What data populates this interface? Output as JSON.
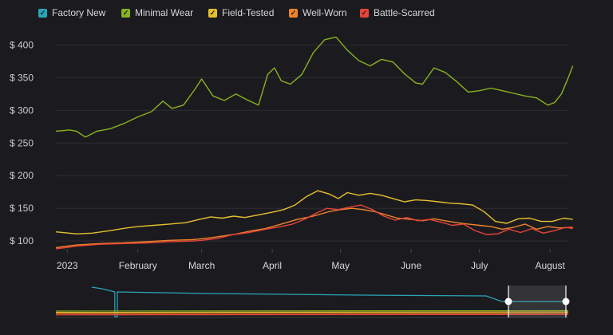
{
  "legend": [
    {
      "label": "Factory New",
      "color": "#2aa5b8"
    },
    {
      "label": "Minimal Wear",
      "color": "#88b31f"
    },
    {
      "label": "Field-Tested",
      "color": "#e6bf2f"
    },
    {
      "label": "Well-Worn",
      "color": "#f0832a"
    },
    {
      "label": "Battle-Scarred",
      "color": "#e8433a"
    }
  ],
  "chart_data": {
    "type": "line",
    "title": "",
    "xlabel": "",
    "ylabel": "",
    "y_tick_labels": [
      "$ 100",
      "$ 150",
      "$ 200",
      "$ 250",
      "$ 300",
      "$ 350",
      "$ 400"
    ],
    "y_ticks": [
      100,
      150,
      200,
      250,
      300,
      350,
      400
    ],
    "ylim": [
      88,
      420
    ],
    "x_tick_labels": [
      "2023",
      "February",
      "March",
      "April",
      "May",
      "June",
      "July",
      "August"
    ],
    "x_ticks": [
      "2023-01-01",
      "2023-02-01",
      "2023-03-01",
      "2023-04-01",
      "2023-05-01",
      "2023-06-01",
      "2023-07-01",
      "2023-08-01"
    ],
    "xlim": [
      "2022-12-27",
      "2023-08-09"
    ],
    "grid": true,
    "legend_position": "top-left",
    "navigator": {
      "type": "line",
      "selected_range": [
        "2022-12-27",
        "2023-08-09"
      ],
      "factory_new_level": "high"
    },
    "series": [
      {
        "name": "Minimal Wear",
        "color": "#88b31f",
        "points": [
          [
            "2022-12-27",
            268
          ],
          [
            "2023-01-02",
            270
          ],
          [
            "2023-01-05",
            268
          ],
          [
            "2023-01-09",
            259
          ],
          [
            "2023-01-14",
            268
          ],
          [
            "2023-01-20",
            272
          ],
          [
            "2023-01-26",
            280
          ],
          [
            "2023-02-01",
            290
          ],
          [
            "2023-02-07",
            298
          ],
          [
            "2023-02-12",
            314
          ],
          [
            "2023-02-16",
            303
          ],
          [
            "2023-02-21",
            308
          ],
          [
            "2023-02-26",
            332
          ],
          [
            "2023-03-01",
            348
          ],
          [
            "2023-03-06",
            322
          ],
          [
            "2023-03-11",
            315
          ],
          [
            "2023-03-16",
            325
          ],
          [
            "2023-03-21",
            316
          ],
          [
            "2023-03-26",
            308
          ],
          [
            "2023-03-30",
            355
          ],
          [
            "2023-04-02",
            365
          ],
          [
            "2023-04-05",
            345
          ],
          [
            "2023-04-09",
            340
          ],
          [
            "2023-04-14",
            355
          ],
          [
            "2023-04-19",
            388
          ],
          [
            "2023-04-24",
            408
          ],
          [
            "2023-04-29",
            412
          ],
          [
            "2023-05-04",
            392
          ],
          [
            "2023-05-09",
            376
          ],
          [
            "2023-05-14",
            368
          ],
          [
            "2023-05-19",
            378
          ],
          [
            "2023-05-24",
            374
          ],
          [
            "2023-05-29",
            356
          ],
          [
            "2023-06-03",
            342
          ],
          [
            "2023-06-06",
            340
          ],
          [
            "2023-06-11",
            365
          ],
          [
            "2023-06-16",
            358
          ],
          [
            "2023-06-21",
            344
          ],
          [
            "2023-06-26",
            328
          ],
          [
            "2023-07-01",
            330
          ],
          [
            "2023-07-06",
            334
          ],
          [
            "2023-07-11",
            330
          ],
          [
            "2023-07-16",
            326
          ],
          [
            "2023-07-21",
            322
          ],
          [
            "2023-07-26",
            319
          ],
          [
            "2023-07-31",
            308
          ],
          [
            "2023-08-03",
            312
          ],
          [
            "2023-08-06",
            325
          ],
          [
            "2023-08-09",
            350
          ],
          [
            "2023-08-11",
            368
          ]
        ]
      },
      {
        "name": "Field-Tested",
        "color": "#e6bf2f",
        "points": [
          [
            "2022-12-27",
            114
          ],
          [
            "2023-01-05",
            111
          ],
          [
            "2023-01-12",
            112
          ],
          [
            "2023-01-20",
            116
          ],
          [
            "2023-01-27",
            120
          ],
          [
            "2023-02-01",
            122
          ],
          [
            "2023-02-08",
            124
          ],
          [
            "2023-02-15",
            126
          ],
          [
            "2023-02-22",
            128
          ],
          [
            "2023-02-28",
            133
          ],
          [
            "2023-03-05",
            137
          ],
          [
            "2023-03-10",
            135
          ],
          [
            "2023-03-15",
            138
          ],
          [
            "2023-03-20",
            136
          ],
          [
            "2023-03-26",
            140
          ],
          [
            "2023-04-01",
            144
          ],
          [
            "2023-04-06",
            148
          ],
          [
            "2023-04-11",
            155
          ],
          [
            "2023-04-16",
            168
          ],
          [
            "2023-04-21",
            177
          ],
          [
            "2023-04-26",
            172
          ],
          [
            "2023-04-30",
            165
          ],
          [
            "2023-05-04",
            174
          ],
          [
            "2023-05-09",
            170
          ],
          [
            "2023-05-14",
            173
          ],
          [
            "2023-05-19",
            170
          ],
          [
            "2023-05-24",
            165
          ],
          [
            "2023-05-29",
            160
          ],
          [
            "2023-06-03",
            163
          ],
          [
            "2023-06-08",
            162
          ],
          [
            "2023-06-13",
            160
          ],
          [
            "2023-06-18",
            158
          ],
          [
            "2023-06-23",
            157
          ],
          [
            "2023-06-28",
            155
          ],
          [
            "2023-07-03",
            145
          ],
          [
            "2023-07-08",
            130
          ],
          [
            "2023-07-13",
            127
          ],
          [
            "2023-07-18",
            134
          ],
          [
            "2023-07-23",
            135
          ],
          [
            "2023-07-28",
            130
          ],
          [
            "2023-08-02",
            130
          ],
          [
            "2023-08-07",
            135
          ],
          [
            "2023-08-11",
            133
          ]
        ]
      },
      {
        "name": "Well-Worn",
        "color": "#f0832a",
        "points": [
          [
            "2022-12-27",
            90
          ],
          [
            "2023-01-05",
            94
          ],
          [
            "2023-01-15",
            96
          ],
          [
            "2023-01-25",
            97
          ],
          [
            "2023-02-05",
            99
          ],
          [
            "2023-02-15",
            101
          ],
          [
            "2023-02-25",
            102
          ],
          [
            "2023-03-05",
            105
          ],
          [
            "2023-03-15",
            110
          ],
          [
            "2023-03-22",
            115
          ],
          [
            "2023-03-29",
            119
          ],
          [
            "2023-04-05",
            126
          ],
          [
            "2023-04-12",
            133
          ],
          [
            "2023-04-19",
            138
          ],
          [
            "2023-04-26",
            145
          ],
          [
            "2023-05-01",
            148
          ],
          [
            "2023-05-06",
            150
          ],
          [
            "2023-05-11",
            148
          ],
          [
            "2023-05-16",
            145
          ],
          [
            "2023-05-21",
            140
          ],
          [
            "2023-05-26",
            135
          ],
          [
            "2023-06-01",
            133
          ],
          [
            "2023-06-06",
            131
          ],
          [
            "2023-06-11",
            134
          ],
          [
            "2023-06-16",
            131
          ],
          [
            "2023-06-21",
            128
          ],
          [
            "2023-06-26",
            126
          ],
          [
            "2023-07-01",
            124
          ],
          [
            "2023-07-06",
            122
          ],
          [
            "2023-07-11",
            118
          ],
          [
            "2023-07-16",
            121
          ],
          [
            "2023-07-21",
            126
          ],
          [
            "2023-07-26",
            118
          ],
          [
            "2023-07-31",
            122
          ],
          [
            "2023-08-05",
            120
          ],
          [
            "2023-08-11",
            121
          ]
        ]
      },
      {
        "name": "Battle-Scarred",
        "color": "#e8433a",
        "points": [
          [
            "2022-12-27",
            88
          ],
          [
            "2023-01-05",
            92
          ],
          [
            "2023-01-15",
            95
          ],
          [
            "2023-01-25",
            96
          ],
          [
            "2023-02-05",
            97
          ],
          [
            "2023-02-15",
            99
          ],
          [
            "2023-02-25",
            100
          ],
          [
            "2023-03-01",
            101
          ],
          [
            "2023-03-08",
            104
          ],
          [
            "2023-03-15",
            110
          ],
          [
            "2023-03-22",
            113
          ],
          [
            "2023-03-29",
            118
          ],
          [
            "2023-04-05",
            122
          ],
          [
            "2023-04-10",
            126
          ],
          [
            "2023-04-15",
            133
          ],
          [
            "2023-04-20",
            142
          ],
          [
            "2023-04-25",
            150
          ],
          [
            "2023-04-30",
            148
          ],
          [
            "2023-05-05",
            152
          ],
          [
            "2023-05-10",
            155
          ],
          [
            "2023-05-15",
            148
          ],
          [
            "2023-05-20",
            138
          ],
          [
            "2023-05-25",
            132
          ],
          [
            "2023-05-30",
            136
          ],
          [
            "2023-06-04",
            131
          ],
          [
            "2023-06-09",
            133
          ],
          [
            "2023-06-14",
            129
          ],
          [
            "2023-06-19",
            124
          ],
          [
            "2023-06-24",
            126
          ],
          [
            "2023-06-29",
            116
          ],
          [
            "2023-07-04",
            110
          ],
          [
            "2023-07-09",
            111
          ],
          [
            "2023-07-14",
            118
          ],
          [
            "2023-07-19",
            113
          ],
          [
            "2023-07-24",
            119
          ],
          [
            "2023-07-29",
            112
          ],
          [
            "2023-08-03",
            116
          ],
          [
            "2023-08-08",
            121
          ],
          [
            "2023-08-11",
            119
          ]
        ]
      }
    ]
  }
}
